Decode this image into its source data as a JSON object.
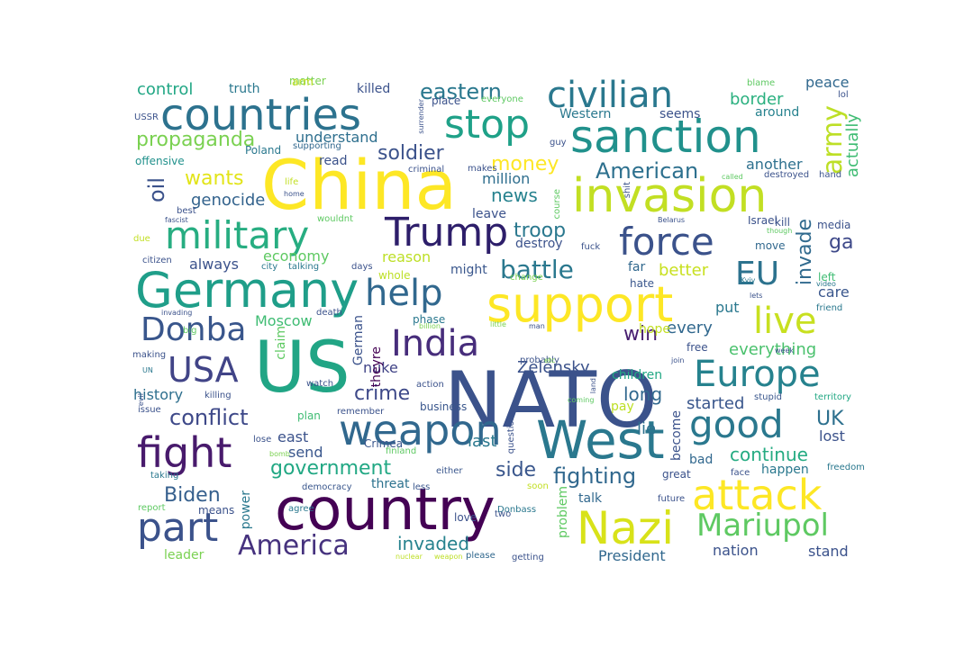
{
  "wordcloud": {
    "background": "#ffffff",
    "colormap": "viridis",
    "words": [
      {
        "text": "NATO",
        "color": "#3b528b"
      },
      {
        "text": "US",
        "color": "#21a585"
      },
      {
        "text": "China",
        "color": "#fde725"
      },
      {
        "text": "country",
        "color": "#440154"
      },
      {
        "text": "West",
        "color": "#2a788e"
      },
      {
        "text": "Germany",
        "color": "#1f9e89"
      },
      {
        "text": "support",
        "color": "#fde725"
      },
      {
        "text": "invasion",
        "color": "#c2df23"
      },
      {
        "text": "sanction",
        "color": "#21918c"
      },
      {
        "text": "countries",
        "color": "#2c728e"
      },
      {
        "text": "weapon",
        "color": "#31688e"
      },
      {
        "text": "attack",
        "color": "#fde725"
      },
      {
        "text": "Nazi",
        "color": "#d8e219"
      },
      {
        "text": "fight",
        "color": "#481a6c"
      },
      {
        "text": "military",
        "color": "#27ad81"
      },
      {
        "text": "civilian",
        "color": "#2a788e"
      },
      {
        "text": "stop",
        "color": "#1fa188"
      },
      {
        "text": "Trump",
        "color": "#2d1e6a"
      },
      {
        "text": "force",
        "color": "#3b528b"
      },
      {
        "text": "help",
        "color": "#31688e"
      },
      {
        "text": "India",
        "color": "#472d7b"
      },
      {
        "text": "Europe",
        "color": "#26828e"
      },
      {
        "text": "good",
        "color": "#2a788e"
      },
      {
        "text": "live",
        "color": "#c8e020"
      },
      {
        "text": "part",
        "color": "#3b528b"
      },
      {
        "text": "USA",
        "color": "#414487"
      },
      {
        "text": "Donba",
        "color": "#39568c"
      },
      {
        "text": "Mariupol",
        "color": "#5ec962"
      },
      {
        "text": "America",
        "color": "#46327e"
      },
      {
        "text": "EU",
        "color": "#2c728e"
      },
      {
        "text": "army",
        "color": "#bddf26"
      },
      {
        "text": "battle",
        "color": "#2a788e"
      },
      {
        "text": "propaganda",
        "color": "#7ad151"
      },
      {
        "text": "eastern",
        "color": "#2a788e"
      },
      {
        "text": "conflict",
        "color": "#3e4989"
      },
      {
        "text": "government",
        "color": "#22a884"
      },
      {
        "text": "fighting",
        "color": "#31688e"
      },
      {
        "text": "invaded",
        "color": "#26828e"
      },
      {
        "text": "continue",
        "color": "#25ab82"
      },
      {
        "text": "invade",
        "color": "#306a8e"
      },
      {
        "text": "crime",
        "color": "#3e4989"
      },
      {
        "text": "side",
        "color": "#39568c"
      },
      {
        "text": "American",
        "color": "#2d708e"
      },
      {
        "text": "soldier",
        "color": "#3b528b"
      },
      {
        "text": "Biden",
        "color": "#355f8d"
      },
      {
        "text": "news",
        "color": "#26828e"
      },
      {
        "text": "money",
        "color": "#fde725"
      },
      {
        "text": "wants",
        "color": "#e2e418"
      },
      {
        "text": "genocide",
        "color": "#33638d"
      },
      {
        "text": "control",
        "color": "#22a785"
      },
      {
        "text": "border",
        "color": "#2ab07f"
      },
      {
        "text": "peace",
        "color": "#31688e"
      },
      {
        "text": "troop",
        "color": "#2a788e"
      },
      {
        "text": "Zelensky",
        "color": "#3b528b"
      },
      {
        "text": "oil",
        "color": "#3b528b"
      },
      {
        "text": "UK",
        "color": "#2d708e"
      },
      {
        "text": "win",
        "color": "#481f70"
      },
      {
        "text": "long",
        "color": "#31688e"
      },
      {
        "text": "started",
        "color": "#39568c"
      },
      {
        "text": "lie",
        "color": "#2d708e"
      },
      {
        "text": "everything",
        "color": "#4ac16d"
      },
      {
        "text": "history",
        "color": "#2e6f8e"
      },
      {
        "text": "reason",
        "color": "#bddf26"
      },
      {
        "text": "economy",
        "color": "#5ec962"
      },
      {
        "text": "Moscow",
        "color": "#3fbc73"
      },
      {
        "text": "last",
        "color": "#2a788e"
      },
      {
        "text": "east",
        "color": "#3b528b"
      },
      {
        "text": "send",
        "color": "#39568c"
      },
      {
        "text": "ga",
        "color": "#3e4989"
      },
      {
        "text": "actually",
        "color": "#3fbc73"
      },
      {
        "text": "better",
        "color": "#c8e020"
      },
      {
        "text": "every",
        "color": "#31688e"
      },
      {
        "text": "care",
        "color": "#39568c"
      },
      {
        "text": "another",
        "color": "#2d708e"
      },
      {
        "text": "million",
        "color": "#2e6e8e"
      },
      {
        "text": "always",
        "color": "#3b528b"
      },
      {
        "text": "nuke",
        "color": "#414487"
      },
      {
        "text": "understand",
        "color": "#2e6f8e"
      },
      {
        "text": "Western",
        "color": "#2a788e"
      },
      {
        "text": "seems",
        "color": "#3b528b"
      },
      {
        "text": "around",
        "color": "#26828e"
      },
      {
        "text": "killed",
        "color": "#3b528b"
      },
      {
        "text": "truth",
        "color": "#2a788e"
      },
      {
        "text": "read",
        "color": "#3b528b"
      },
      {
        "text": "offensive",
        "color": "#21918c"
      },
      {
        "text": "leave",
        "color": "#3b528b"
      },
      {
        "text": "destroy",
        "color": "#3b528b"
      },
      {
        "text": "might",
        "color": "#39568c"
      },
      {
        "text": "far",
        "color": "#31688e"
      },
      {
        "text": "hate",
        "color": "#39568c"
      },
      {
        "text": "move",
        "color": "#31688e"
      },
      {
        "text": "media",
        "color": "#3b528b"
      },
      {
        "text": "left",
        "color": "#3fbc73"
      },
      {
        "text": "put",
        "color": "#2a788e"
      },
      {
        "text": "hope",
        "color": "#c2df23"
      },
      {
        "text": "free",
        "color": "#3b528b"
      },
      {
        "text": "children",
        "color": "#22a884"
      },
      {
        "text": "pay",
        "color": "#bddf26"
      },
      {
        "text": "become",
        "color": "#3b528b"
      },
      {
        "text": "lost",
        "color": "#3b528b"
      },
      {
        "text": "bad",
        "color": "#31688e"
      },
      {
        "text": "happen",
        "color": "#2a788e"
      },
      {
        "text": "talk",
        "color": "#31688e"
      },
      {
        "text": "problem",
        "color": "#5ec962"
      },
      {
        "text": "President",
        "color": "#31688e"
      },
      {
        "text": "nation",
        "color": "#3b528b"
      },
      {
        "text": "stand",
        "color": "#3b528b"
      },
      {
        "text": "leader",
        "color": "#7ad151"
      },
      {
        "text": "power",
        "color": "#2a788e"
      },
      {
        "text": "threat",
        "color": "#2c728e"
      },
      {
        "text": "German",
        "color": "#3b528b"
      },
      {
        "text": "theyre",
        "color": "#440154"
      },
      {
        "text": "claim",
        "color": "#5ec962"
      },
      {
        "text": "phase",
        "color": "#2a788e"
      },
      {
        "text": "Crimea",
        "color": "#39568c"
      },
      {
        "text": "plan",
        "color": "#3fbc73"
      },
      {
        "text": "Israel",
        "color": "#3b528b"
      },
      {
        "text": "kill",
        "color": "#3b528b"
      },
      {
        "text": "Poland",
        "color": "#2a788e"
      },
      {
        "text": "supporting",
        "color": "#31688e"
      },
      {
        "text": "matter",
        "color": "#7ad151"
      },
      {
        "text": "arm",
        "color": "#c2df23"
      },
      {
        "text": "place",
        "color": "#3b528b"
      },
      {
        "text": "everyone",
        "color": "#5ec962"
      },
      {
        "text": "guy",
        "color": "#3b528b"
      },
      {
        "text": "fuck",
        "color": "#3b528b"
      },
      {
        "text": "city",
        "color": "#2a788e"
      },
      {
        "text": "talking",
        "color": "#2a788e"
      },
      {
        "text": "days",
        "color": "#3b528b"
      },
      {
        "text": "whole",
        "color": "#bddf26"
      },
      {
        "text": "change",
        "color": "#7ad151"
      },
      {
        "text": "Kyiv",
        "color": "#2a788e"
      },
      {
        "text": "video",
        "color": "#2a788e"
      },
      {
        "text": "friend",
        "color": "#2a788e"
      },
      {
        "text": "lets",
        "color": "#3b528b"
      },
      {
        "text": "though",
        "color": "#5ec962"
      },
      {
        "text": "Belarus",
        "color": "#3b528b"
      },
      {
        "text": "stupid",
        "color": "#39568c"
      },
      {
        "text": "territory",
        "color": "#22a884"
      },
      {
        "text": "week",
        "color": "#3b528b"
      },
      {
        "text": "join",
        "color": "#3b528b"
      },
      {
        "text": "probably",
        "color": "#3b528b"
      },
      {
        "text": "etc",
        "color": "#7ad151"
      },
      {
        "text": "action",
        "color": "#3b528b"
      },
      {
        "text": "business",
        "color": "#39568c"
      },
      {
        "text": "billion",
        "color": "#7ad151"
      },
      {
        "text": "man",
        "color": "#3b528b"
      },
      {
        "text": "little",
        "color": "#7ad151"
      },
      {
        "text": "question",
        "color": "#3b528b"
      },
      {
        "text": "coming",
        "color": "#5ec962"
      },
      {
        "text": "great",
        "color": "#3b528b"
      },
      {
        "text": "face",
        "color": "#3b528b"
      },
      {
        "text": "freedom",
        "color": "#2a788e"
      },
      {
        "text": "future",
        "color": "#3b528b"
      },
      {
        "text": "soon",
        "color": "#c2df23"
      },
      {
        "text": "Donbass",
        "color": "#2a788e"
      },
      {
        "text": "either",
        "color": "#39568c"
      },
      {
        "text": "less",
        "color": "#39568c"
      },
      {
        "text": "nuclear",
        "color": "#bddf26"
      },
      {
        "text": "weapon",
        "color": "#bddf26"
      },
      {
        "text": "please",
        "color": "#31688e"
      },
      {
        "text": "getting",
        "color": "#3b528b"
      },
      {
        "text": "two",
        "color": "#3b528b"
      },
      {
        "text": "love",
        "color": "#3b528b"
      },
      {
        "text": "agree",
        "color": "#2a788e"
      },
      {
        "text": "democracy",
        "color": "#39568c"
      },
      {
        "text": "bomb",
        "color": "#7ad151"
      },
      {
        "text": "finland",
        "color": "#5ec962"
      },
      {
        "text": "means",
        "color": "#3b528b"
      },
      {
        "text": "report",
        "color": "#5ec962"
      },
      {
        "text": "taking",
        "color": "#2a788e"
      },
      {
        "text": "issue",
        "color": "#3b528b"
      },
      {
        "text": "evil",
        "color": "#3b528b"
      },
      {
        "text": "lose",
        "color": "#3b528b"
      },
      {
        "text": "remember",
        "color": "#3b528b"
      },
      {
        "text": "watch",
        "color": "#3b528b"
      },
      {
        "text": "killing",
        "color": "#3b528b"
      },
      {
        "text": "UN",
        "color": "#2a788e"
      },
      {
        "text": "making",
        "color": "#3b528b"
      },
      {
        "text": "invading",
        "color": "#3b528b"
      },
      {
        "text": "big",
        "color": "#5ec962"
      },
      {
        "text": "death",
        "color": "#3b528b"
      },
      {
        "text": "citizen",
        "color": "#3b528b"
      },
      {
        "text": "due",
        "color": "#c2df23"
      },
      {
        "text": "fascist",
        "color": "#3b528b"
      },
      {
        "text": "best",
        "color": "#3b528b"
      },
      {
        "text": "wouldnt",
        "color": "#5ec962"
      },
      {
        "text": "home",
        "color": "#3b528b"
      },
      {
        "text": "life",
        "color": "#c2df23"
      },
      {
        "text": "criminal",
        "color": "#3b528b"
      },
      {
        "text": "makes",
        "color": "#3b528b"
      },
      {
        "text": "course",
        "color": "#5ec962"
      },
      {
        "text": "shit",
        "color": "#3b528b"
      },
      {
        "text": "called",
        "color": "#5ec962"
      },
      {
        "text": "destroyed",
        "color": "#3b528b"
      },
      {
        "text": "hand",
        "color": "#3b528b"
      },
      {
        "text": "blame",
        "color": "#5ec962"
      },
      {
        "text": "lol",
        "color": "#3b528b"
      },
      {
        "text": "USSR",
        "color": "#3b528b"
      },
      {
        "text": "surrender",
        "color": "#3b528b"
      },
      {
        "text": "land",
        "color": "#3b528b"
      }
    ]
  }
}
